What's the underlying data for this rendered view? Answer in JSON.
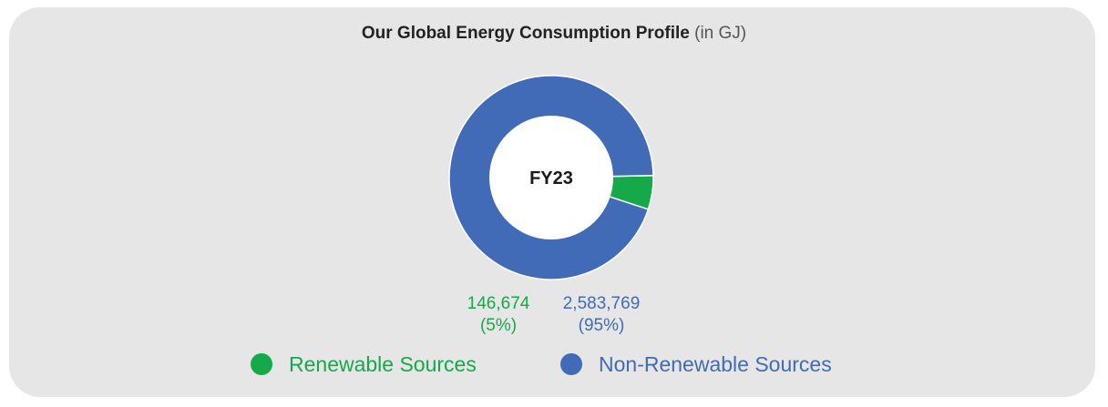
{
  "title": {
    "main": "Our Global Energy Consumption Profile",
    "unit": "(in GJ)"
  },
  "colors": {
    "renewable": "#16a94a",
    "non_renewable": "#416bb7",
    "card_bg": "#e6e6e6"
  },
  "chart_data": {
    "type": "pie",
    "title": "Our Global Energy Consumption Profile (in GJ)",
    "center_label": "FY23",
    "series": [
      {
        "name": "Renewable Sources",
        "value": 146674,
        "value_label": "146,674",
        "percent_label": "(5%)",
        "color": "#16a94a"
      },
      {
        "name": "Non-Renewable Sources",
        "value": 2583769,
        "value_label": "2,583,769",
        "percent_label": "(95%)",
        "color": "#416bb7"
      }
    ],
    "legend_position": "bottom"
  }
}
